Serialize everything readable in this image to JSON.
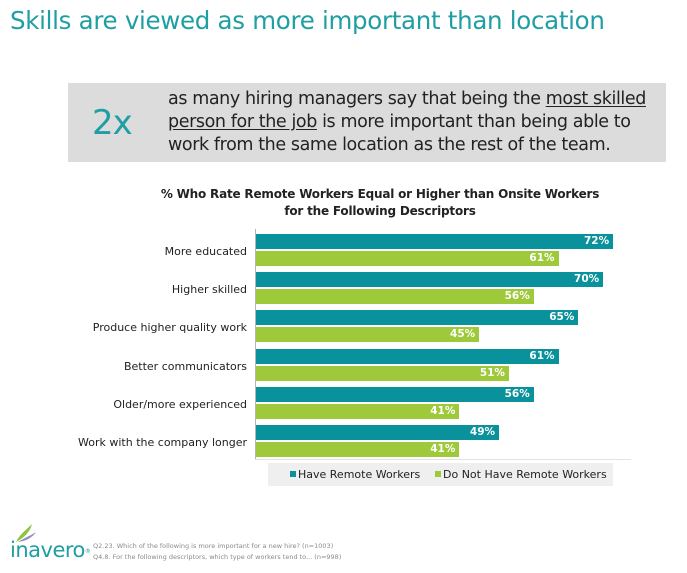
{
  "slide": {
    "title": "Skills are viewed as more important than location",
    "callout": {
      "stat": "2x",
      "text_before": "as many hiring managers say that being the ",
      "text_underlined": "most skilled person for the job",
      "text_after": " is more important than being able to work from the same location as the rest of the team."
    },
    "footnotes": [
      "Q2.23. Which of the following is more important for a new hire? (n=1003)",
      "Q4.8. For the following descriptors, which type of workers tend to... (n=998)"
    ],
    "logo": {
      "text": "inavero",
      "mark": "®"
    }
  },
  "colors": {
    "accent": "#1f9ea3",
    "have_remote": "#0a929c",
    "no_remote": "#9dc93a",
    "callout_bg": "#dcdcdc",
    "legend_bg": "#efefef"
  },
  "chart_data": {
    "type": "bar",
    "orientation": "horizontal",
    "title": "% Who Rate Remote Workers Equal or Higher than Onsite Workers for the Following Descriptors",
    "title_lines": [
      "% Who Rate Remote Workers Equal or Higher than Onsite Workers",
      "for the Following Descriptors"
    ],
    "categories": [
      "More educated",
      "Higher skilled",
      "Produce higher quality work",
      "Better communicators",
      "Older/more experienced",
      "Work with the company longer"
    ],
    "series": [
      {
        "name": "Have Remote Workers",
        "color": "#0a929c",
        "values": [
          72,
          70,
          65,
          61,
          56,
          49
        ],
        "labels": [
          "72%",
          "70%",
          "65%",
          "61%",
          "56%",
          "49%"
        ]
      },
      {
        "name": "Do Not Have Remote Workers",
        "color": "#9dc93a",
        "values": [
          61,
          56,
          45,
          51,
          41,
          41
        ],
        "labels": [
          "61%",
          "56%",
          "45%",
          "51%",
          "41%",
          "41%"
        ]
      }
    ],
    "xlabel": "",
    "ylabel": "",
    "xlim": [
      0,
      75
    ],
    "grid": false,
    "legend_position": "bottom",
    "data_labels": true
  }
}
